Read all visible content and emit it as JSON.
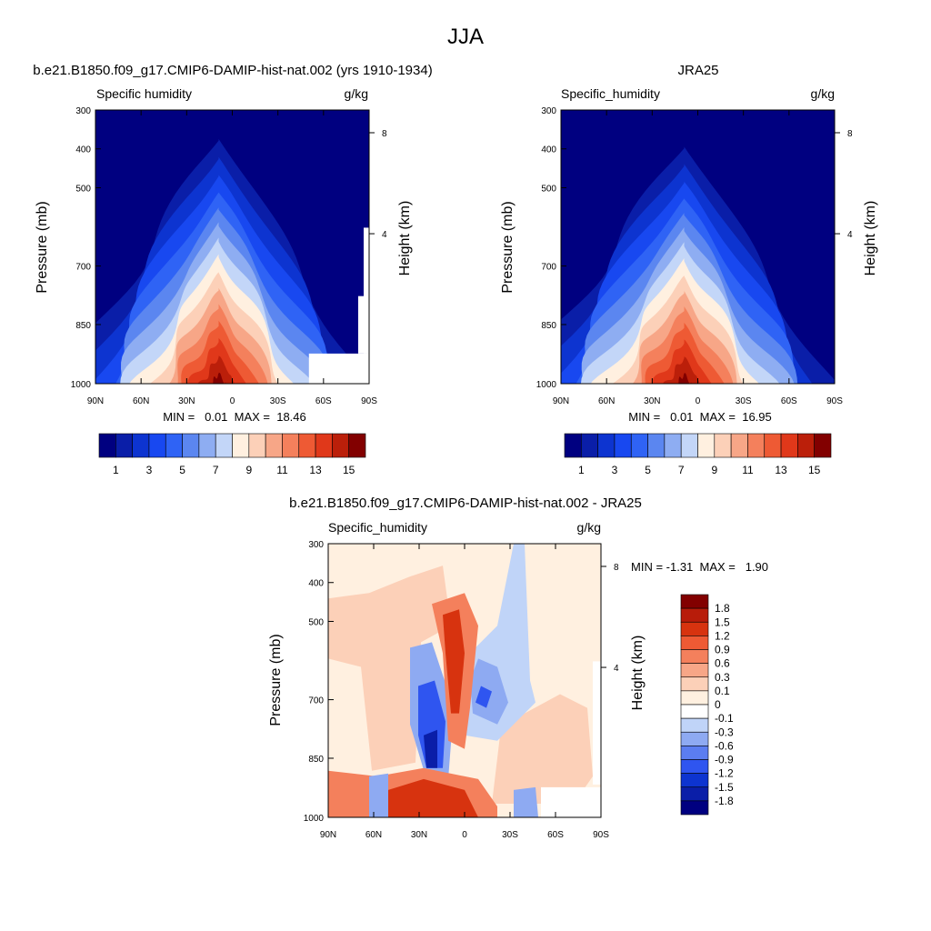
{
  "page_title": "JJA",
  "colors": {
    "level_fill": [
      "#000080",
      "#0a1ea8",
      "#0d34d0",
      "#1848f0",
      "#2f63f5",
      "#5b86f0",
      "#8eadf2",
      "#c3d6f8",
      "#fff0e0",
      "#fcd0b8",
      "#f7a687",
      "#f4805c",
      "#ee5a34",
      "#e0381a",
      "#bb1f0a",
      "#820000"
    ],
    "diff_fill": [
      "#000080",
      "#0a1ea8",
      "#0d34d0",
      "#2f55f0",
      "#5b7df0",
      "#8eaaf2",
      "#c0d4f8",
      "#ffffff",
      "#fff0e0",
      "#fcd0b8",
      "#f7a687",
      "#f4805c",
      "#ee5a34",
      "#d7330f",
      "#b81c0a",
      "#820000"
    ]
  },
  "shared_axes": {
    "y_pressure_ticks": [
      "300",
      "400",
      "500",
      "700",
      "850",
      "1000"
    ],
    "x_lat_ticks": [
      "90N",
      "60N",
      "30N",
      "0",
      "30S",
      "60S",
      "90S"
    ],
    "height_ticks": [
      "8",
      "4"
    ],
    "ylabel": "Pressure (mb)",
    "y2label": "Height (km)"
  },
  "colorbar_top": {
    "labels": [
      "1",
      "3",
      "5",
      "7",
      "9",
      "11",
      "13",
      "15"
    ]
  },
  "colorbar_diff": {
    "labels": [
      "1.8",
      "1.5",
      "1.2",
      "0.9",
      "0.6",
      "0.3",
      "0.1",
      "0",
      "-0.1",
      "-0.3",
      "-0.6",
      "-0.9",
      "-1.2",
      "-1.5",
      "-1.8"
    ]
  },
  "chart_data": [
    {
      "type": "heatmap",
      "title": "b.e21.B1850.f09_g17.CMIP6-DAMIP-hist-nat.002 (yrs 1910-1934)",
      "left_label": "Specific humidity",
      "right_label": "g/kg",
      "xlabel": "",
      "ylabel": "Pressure (mb)",
      "stats": "MIN =   0.01  MAX =  18.46",
      "min": 0.01,
      "max": 18.46,
      "x": [
        90,
        60,
        30,
        0,
        -30,
        -60,
        -90
      ],
      "y": [
        300,
        400,
        500,
        700,
        850,
        1000
      ],
      "contour_levels": [
        1,
        2,
        3,
        4,
        5,
        6,
        7,
        8,
        9,
        10,
        11,
        12,
        13,
        14,
        15
      ],
      "peak_lat": -5,
      "peak_pressure": 1000
    },
    {
      "type": "heatmap",
      "title": "JRA25",
      "left_label": "Specific_humidity",
      "right_label": "g/kg",
      "xlabel": "",
      "ylabel": "Pressure (mb)",
      "stats": "MIN =   0.01  MAX =  16.95",
      "min": 0.01,
      "max": 16.95,
      "x": [
        90,
        60,
        30,
        0,
        -30,
        -60,
        -90
      ],
      "y": [
        300,
        400,
        500,
        700,
        850,
        1000
      ],
      "contour_levels": [
        1,
        2,
        3,
        4,
        5,
        6,
        7,
        8,
        9,
        10,
        11,
        12,
        13,
        14,
        15
      ],
      "peak_lat": -5,
      "peak_pressure": 1000
    },
    {
      "type": "heatmap",
      "title": "b.e21.B1850.f09_g17.CMIP6-DAMIP-hist-nat.002 - JRA25",
      "left_label": "Specific_humidity",
      "right_label": "g/kg",
      "xlabel": "",
      "ylabel": "Pressure (mb)",
      "stats": "MIN = -1.31  MAX =   1.90",
      "min": -1.31,
      "max": 1.9,
      "x": [
        90,
        60,
        30,
        0,
        -30,
        -60,
        -90
      ],
      "y": [
        300,
        400,
        500,
        700,
        850,
        1000
      ],
      "contour_levels": [
        -1.8,
        -1.5,
        -1.2,
        -0.9,
        -0.6,
        -0.3,
        -0.1,
        0,
        0.1,
        0.3,
        0.6,
        0.9,
        1.2,
        1.5,
        1.8
      ]
    }
  ]
}
